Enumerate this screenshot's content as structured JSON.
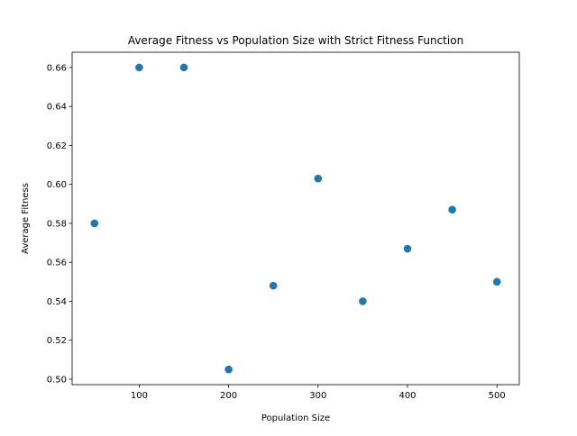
{
  "chart_data": {
    "type": "scatter",
    "title": "Average Fitness vs Population Size with Strict Fitness Function",
    "xlabel": "Population Size",
    "ylabel": "Average Fitness",
    "xlim": [
      25,
      525
    ],
    "ylim": [
      0.4972,
      0.6678
    ],
    "xticks": [
      100,
      200,
      300,
      400,
      500
    ],
    "yticks": [
      0.5,
      0.52,
      0.54,
      0.56,
      0.58,
      0.6,
      0.62,
      0.64,
      0.66
    ],
    "grid": false,
    "marker_color": "#1f77b4",
    "x": [
      50,
      100,
      150,
      200,
      250,
      300,
      350,
      400,
      450,
      500
    ],
    "y": [
      0.58,
      0.66,
      0.66,
      0.505,
      0.548,
      0.603,
      0.54,
      0.567,
      0.587,
      0.55
    ]
  }
}
